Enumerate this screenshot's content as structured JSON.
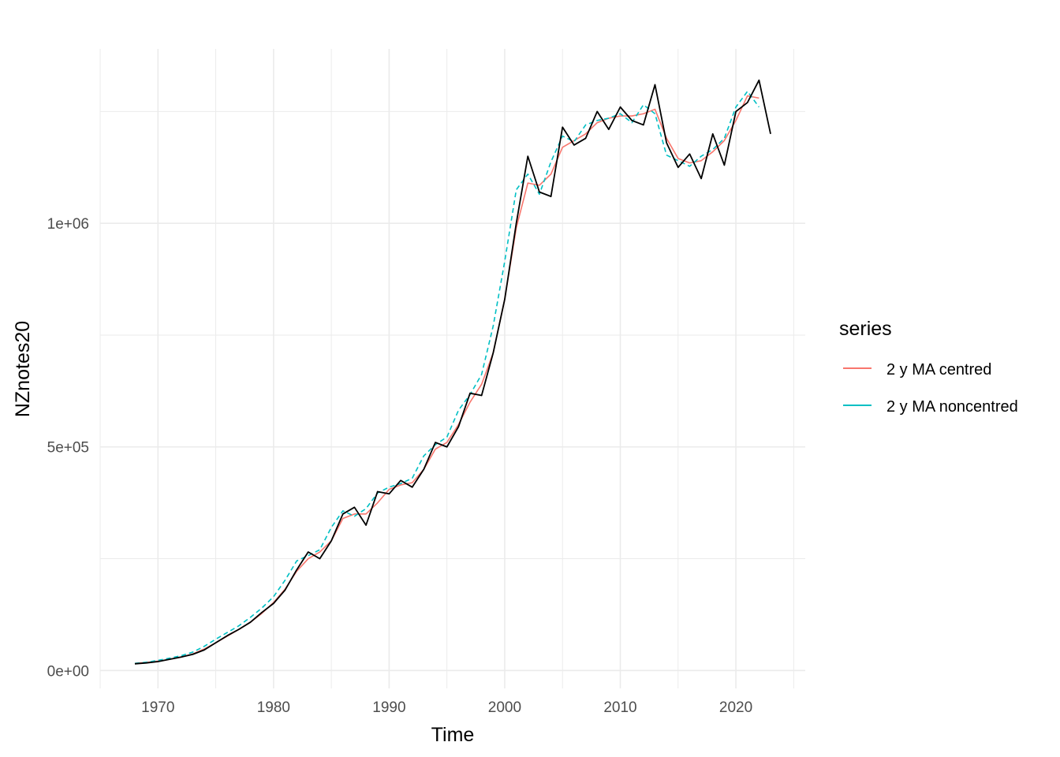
{
  "chart_data": {
    "type": "line",
    "xlabel": "Time",
    "ylabel": "NZnotes20",
    "xlim": [
      1965,
      2026
    ],
    "ylim": [
      -40000,
      1390000
    ],
    "x_ticks": [
      1970,
      1980,
      1990,
      2000,
      2010,
      2020
    ],
    "x_tick_labels": [
      "1970",
      "1980",
      "1990",
      "2000",
      "2010",
      "2020"
    ],
    "y_ticks": [
      0,
      500000,
      1000000
    ],
    "y_tick_labels": [
      "0e+00",
      "5e+05",
      "1e+06"
    ],
    "grid": true,
    "legend": {
      "title": "series",
      "position": "right"
    },
    "raw_series": {
      "color": "#000000",
      "x": [
        1968,
        1969,
        1970,
        1971,
        1972,
        1973,
        1974,
        1975,
        1976,
        1977,
        1978,
        1979,
        1980,
        1981,
        1982,
        1983,
        1984,
        1985,
        1986,
        1987,
        1988,
        1989,
        1990,
        1991,
        1992,
        1993,
        1994,
        1995,
        1996,
        1997,
        1998,
        1999,
        2000,
        2001,
        2002,
        2003,
        2004,
        2005,
        2006,
        2007,
        2008,
        2009,
        2010,
        2011,
        2012,
        2013,
        2014,
        2015,
        2016,
        2017,
        2018,
        2019,
        2020,
        2021,
        2022,
        2023
      ],
      "values": [
        15000,
        17000,
        20000,
        25000,
        30000,
        36000,
        46000,
        62000,
        78000,
        92000,
        108000,
        130000,
        150000,
        180000,
        225000,
        265000,
        250000,
        290000,
        350000,
        365000,
        325000,
        400000,
        395000,
        425000,
        410000,
        450000,
        510000,
        500000,
        545000,
        620000,
        615000,
        710000,
        830000,
        1000000,
        1150000,
        1070000,
        1060000,
        1215000,
        1175000,
        1190000,
        1250000,
        1210000,
        1260000,
        1230000,
        1220000,
        1310000,
        1180000,
        1125000,
        1155000,
        1100000,
        1200000,
        1130000,
        1250000,
        1270000,
        1320000,
        1200000
      ]
    },
    "series": [
      {
        "name": "2 y MA centred",
        "color": "#F8766D",
        "dash": "solid",
        "x": [
          1968,
          1969,
          1970,
          1971,
          1972,
          1973,
          1974,
          1975,
          1976,
          1977,
          1978,
          1979,
          1980,
          1981,
          1982,
          1983,
          1984,
          1985,
          1986,
          1987,
          1988,
          1989,
          1990,
          1991,
          1992,
          1993,
          1994,
          1995,
          1996,
          1997,
          1998,
          1999,
          2000,
          2001,
          2002,
          2003,
          2004,
          2005,
          2006,
          2007,
          2008,
          2009,
          2010,
          2011,
          2012,
          2013,
          2014,
          2015,
          2016,
          2017,
          2018,
          2019,
          2020,
          2021,
          2022
        ],
        "values": [
          16000,
          18000,
          21000,
          25000,
          30000,
          37000,
          48000,
          62000,
          77000,
          92000,
          108000,
          128000,
          152000,
          182000,
          222000,
          250000,
          265000,
          290000,
          340000,
          350000,
          350000,
          375000,
          405000,
          415000,
          420000,
          450000,
          495000,
          510000,
          550000,
          600000,
          640000,
          710000,
          830000,
          990000,
          1090000,
          1085000,
          1110000,
          1170000,
          1185000,
          1200000,
          1225000,
          1235000,
          1240000,
          1240000,
          1245000,
          1255000,
          1190000,
          1145000,
          1135000,
          1140000,
          1160000,
          1185000,
          1230000,
          1285000,
          1280000
        ]
      },
      {
        "name": "2 y MA noncentred",
        "color": "#00BFC4",
        "dash": "dashed",
        "x": [
          1968,
          1969,
          1970,
          1971,
          1972,
          1973,
          1974,
          1975,
          1976,
          1977,
          1978,
          1979,
          1980,
          1981,
          1982,
          1983,
          1984,
          1985,
          1986,
          1987,
          1988,
          1989,
          1990,
          1991,
          1992,
          1993,
          1994,
          1995,
          1996,
          1997,
          1998,
          1999,
          2000,
          2001,
          2002,
          2003,
          2004,
          2005,
          2006,
          2007,
          2008,
          2009,
          2010,
          2011,
          2012,
          2013,
          2014,
          2015,
          2016,
          2017,
          2018,
          2019,
          2020,
          2021,
          2022
        ],
        "values": [
          16000,
          18500,
          22500,
          27500,
          33000,
          41000,
          54000,
          70000,
          85000,
          100000,
          119000,
          140000,
          165000,
          202000,
          245000,
          257000,
          270000,
          320000,
          357000,
          345000,
          362000,
          397000,
          410000,
          418000,
          430000,
          480000,
          505000,
          522000,
          582000,
          617000,
          662000,
          770000,
          915000,
          1075000,
          1110000,
          1065000,
          1137500,
          1195000,
          1182500,
          1220000,
          1230000,
          1235000,
          1245000,
          1225000,
          1265000,
          1245000,
          1152500,
          1140000,
          1127500,
          1150000,
          1165000,
          1190000,
          1260000,
          1295000,
          1260000
        ]
      }
    ]
  }
}
